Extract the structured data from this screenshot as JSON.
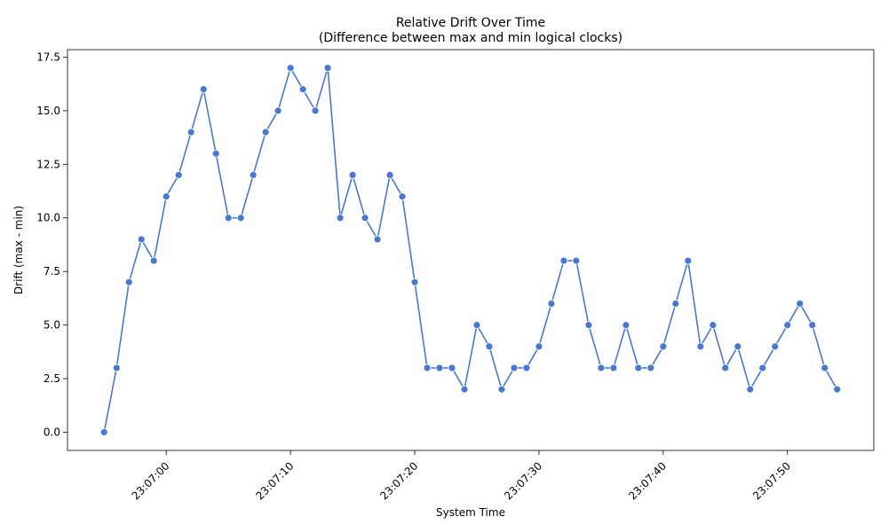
{
  "chart_data": {
    "type": "line",
    "title": "Relative Drift Over Time",
    "subtitle": "(Difference between max and min logical clocks)",
    "xlabel": "System Time",
    "ylabel": "Drift (max - min)",
    "x_start_time": "23:06:55",
    "x_step_seconds": 1,
    "x_ticks": [
      "23:07:00",
      "23:07:10",
      "23:07:20",
      "23:07:30",
      "23:07:40",
      "23:07:50"
    ],
    "y_ticks": [
      "0.0",
      "2.5",
      "5.0",
      "7.5",
      "10.0",
      "12.5",
      "15.0",
      "17.5"
    ],
    "ylim": [
      -0.85,
      17.85
    ],
    "grid": false,
    "line_color": "#4878cf",
    "series": [
      {
        "values": [
          0,
          3,
          7,
          9,
          8,
          11,
          12,
          14,
          16,
          13,
          10,
          10,
          12,
          14,
          15,
          17,
          16,
          15,
          17,
          10,
          12,
          10,
          9,
          12,
          11,
          7,
          3,
          3,
          3,
          2,
          5,
          4,
          2,
          3,
          3,
          4,
          6,
          8,
          8,
          5,
          3,
          3,
          5,
          3,
          3,
          4,
          6,
          8,
          4,
          5,
          3,
          4,
          2,
          3,
          4,
          5,
          6,
          5,
          3,
          2
        ]
      }
    ]
  }
}
